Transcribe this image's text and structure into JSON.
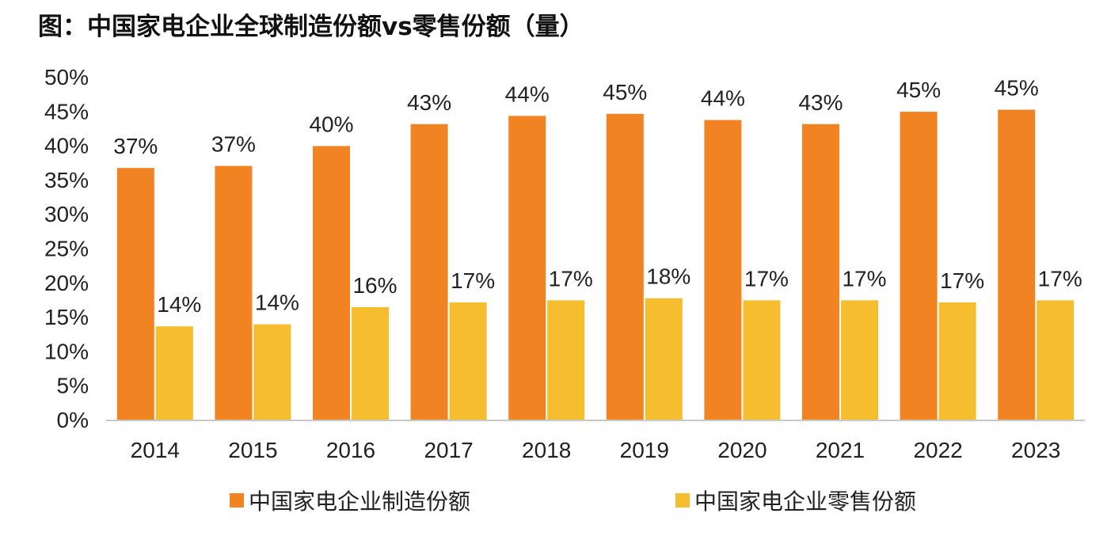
{
  "title": "图：中国家电企业全球制造份额vs零售份额（量）",
  "colors": {
    "manufacturing": "#F28322",
    "retail": "#F6BE2E",
    "axis": "#C8C8C8",
    "text": "#222222"
  },
  "chart_data": {
    "type": "bar",
    "title": "图：中国家电企业全球制造份额vs零售份额（量）",
    "xlabel": "",
    "ylabel": "",
    "categories": [
      "2014",
      "2015",
      "2016",
      "2017",
      "2018",
      "2019",
      "2020",
      "2021",
      "2022",
      "2023"
    ],
    "series": [
      {
        "name": "中国家电企业制造份额",
        "values": [
          36.7,
          37.0,
          39.9,
          43.1,
          44.3,
          44.6,
          43.7,
          43.1,
          44.9,
          45.2
        ],
        "labels": [
          "37%",
          "37%",
          "40%",
          "43%",
          "44%",
          "45%",
          "44%",
          "43%",
          "45%",
          "45%"
        ]
      },
      {
        "name": "中国家电企业零售份额",
        "values": [
          13.6,
          13.9,
          16.4,
          17.1,
          17.4,
          17.7,
          17.4,
          17.4,
          17.1,
          17.4
        ],
        "labels": [
          "14%",
          "14%",
          "16%",
          "17%",
          "17%",
          "18%",
          "17%",
          "17%",
          "17%",
          "17%"
        ]
      }
    ],
    "ylim": [
      0,
      50
    ],
    "yticks": [
      0,
      5,
      10,
      15,
      20,
      25,
      30,
      35,
      40,
      45,
      50
    ],
    "ytick_labels": [
      "0%",
      "5%",
      "10%",
      "15%",
      "20%",
      "25%",
      "30%",
      "35%",
      "40%",
      "45%",
      "50%"
    ],
    "grid": false,
    "legend_position": "bottom"
  }
}
